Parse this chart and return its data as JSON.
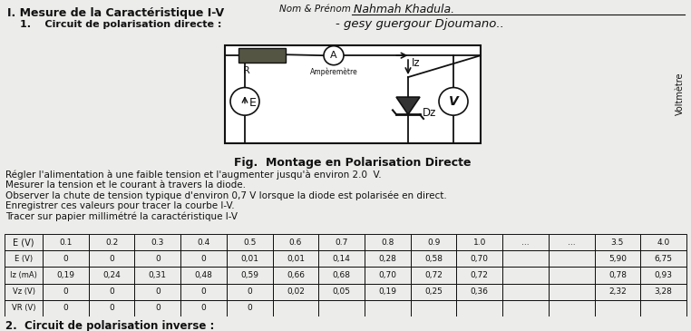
{
  "nom_prenom_label": "Nom & Prénom :",
  "nom_prenom_value": "Nahmah Khadula.",
  "subtitle": "- gesy guergour Djoumano..",
  "section_title": "I. Mesure de la Caractéristique I-V",
  "subsection": "1.    Circuit de polarisation directe :",
  "fig_caption": "Fig.  Montage en Polarisation Directe",
  "instructions": [
    "Régler l'alimentation à une faible tension et l'augmenter jusqu'à environ 2.0  V.",
    "Mesurer la tension et le courant à travers la diode.",
    "Observer la chute de tension typique d'environ 0,7 V lorsque la diode est polarisée en direct.",
    "Enregistrer ces valeurs pour tracer la courbe I-V.",
    "Tracer sur papier millimétré la caractéristique I-V"
  ],
  "col_headers": [
    "0.1",
    "0.2",
    "0.3",
    "0.4",
    "0.5",
    "0.6",
    "0.7",
    "0.8",
    "0.9",
    "1.0",
    "...",
    "...",
    "3.5",
    "4.0"
  ],
  "row1_label": "E (V)",
  "row2_label": "Iz (mA)",
  "row3_label": "Vz (V)",
  "row4_label": "VR (V)",
  "row1": [
    "0",
    "0",
    "0",
    "0",
    "0,01",
    "0,01",
    "0,14",
    "0,28",
    "0,58",
    "0,70",
    "",
    "",
    "5,90",
    "6,75"
  ],
  "row2": [
    "0,19",
    "0,24",
    "0,31",
    "0,48",
    "0,59",
    "0,66",
    "0,68",
    "0,70",
    "0,72",
    "0,72",
    "",
    "",
    "0,78",
    "0,93"
  ],
  "row3": [
    "0",
    "0",
    "0",
    "0",
    "0",
    "0,02",
    "0,05",
    "0,19",
    "0,25",
    "0,36",
    "",
    "",
    "2,32",
    "3,28"
  ],
  "row4": [
    "0",
    "0",
    "0",
    "0",
    "0",
    "",
    "",
    "",
    "",
    "",
    "",
    "",
    "",
    ""
  ],
  "bg_color": "#ececea",
  "text_color": "#111111",
  "circuit_line": "#111111"
}
